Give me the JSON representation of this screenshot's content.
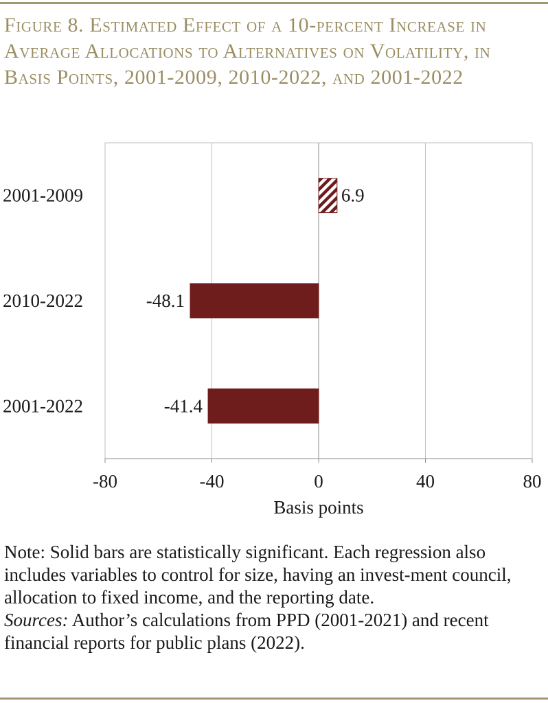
{
  "figure": {
    "title": "Figure 8. Estimated Effect of a 10-percent Increase in Average Allocations to Alternatives on Volatility, in Basis Points, 2001-2009, 2010-2022, and 2001-2022"
  },
  "chart_data": {
    "type": "bar",
    "orientation": "horizontal",
    "categories": [
      "2001-2009",
      "2010-2022",
      "2001-2022"
    ],
    "values": [
      6.9,
      -48.1,
      -41.4
    ],
    "value_labels": [
      "6.9",
      "-48.1",
      "-41.4"
    ],
    "significant": [
      false,
      true,
      true
    ],
    "xlabel": "Basis points",
    "ylabel": "",
    "xlim": [
      -80,
      80
    ],
    "xticks": [
      -80,
      -40,
      0,
      40,
      80
    ],
    "xtick_labels": [
      "-80",
      "-40",
      "0",
      "40",
      "80"
    ],
    "grid": "vertical",
    "legend": "none",
    "colors": {
      "bar": "#6e1c1c",
      "grid": "#bfbfbf",
      "axis": "#8c8c8c"
    }
  },
  "note": {
    "text": "Note: Solid bars are statistically significant.  Each regression also includes variables to control for size, having an invest-ment council, allocation to fixed income, and the reporting date.",
    "sources_label": "Sources:",
    "sources_text": " Author’s calculations from PPD (2001-2021) and recent financial reports for public plans (2022)."
  }
}
